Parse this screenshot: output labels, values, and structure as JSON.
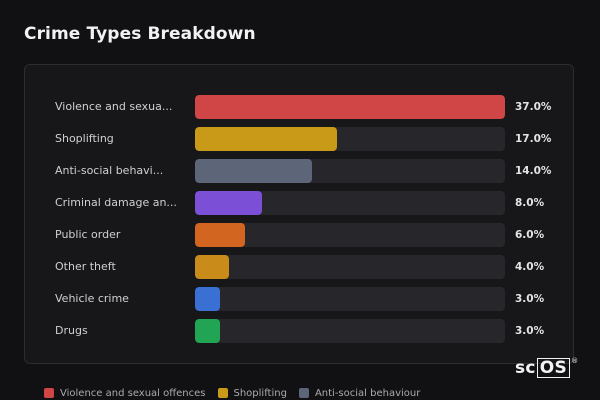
{
  "title": "Crime Types Breakdown",
  "chart_data": {
    "type": "bar",
    "orientation": "horizontal",
    "title": "Crime Types Breakdown",
    "categories": [
      "Violence and sexua...",
      "Shoplifting",
      "Anti-social behavi...",
      "Criminal damage an...",
      "Public order",
      "Other theft",
      "Vehicle crime",
      "Drugs"
    ],
    "values": [
      37.0,
      17.0,
      14.0,
      8.0,
      6.0,
      4.0,
      3.0,
      3.0
    ],
    "value_labels": [
      "37.0%",
      "17.0%",
      "14.0%",
      "8.0%",
      "6.0%",
      "4.0%",
      "3.0%",
      "3.0%"
    ],
    "colors": [
      "#d04545",
      "#c99a17",
      "#5c6678",
      "#7b4fd6",
      "#d2651f",
      "#c98c1a",
      "#3a6fd4",
      "#22a455"
    ],
    "xlim": [
      0,
      37.0
    ],
    "grid": false,
    "legend_position": "bottom"
  },
  "legend": [
    {
      "label": "Violence and sexual offences",
      "color": "#d04545"
    },
    {
      "label": "Shoplifting",
      "color": "#c99a17"
    },
    {
      "label": "Anti-social behaviour",
      "color": "#5c6678"
    }
  ],
  "watermark": {
    "left": "sc",
    "boxed": "OS",
    "mark": "®"
  }
}
